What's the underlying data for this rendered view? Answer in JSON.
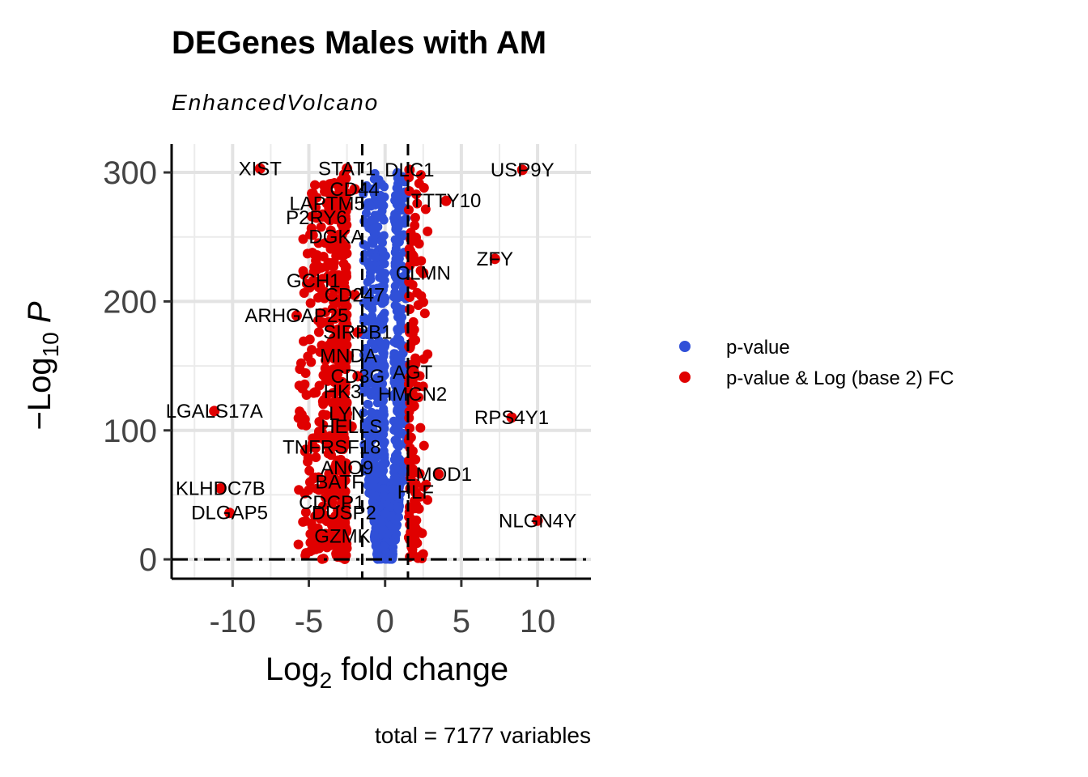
{
  "chart_data": {
    "type": "scatter",
    "title": "DEGenes Males with AM",
    "subtitle": "EnhancedVolcano",
    "xlabel": {
      "base": "Log",
      "sub": "2",
      "rest": " fold change"
    },
    "ylabel": {
      "base": "Log",
      "sub": "10",
      "rest": " P"
    },
    "xlim": [
      -14,
      13.5
    ],
    "ylim": [
      -15,
      322
    ],
    "x_ticks": [
      -10,
      -5,
      0,
      5,
      10
    ],
    "y_ticks": [
      0,
      100,
      200,
      300
    ],
    "grid": true,
    "fc_cutoff": 1.5,
    "p_cutoff_log": 0,
    "caption": "total = 7177 variables",
    "legend_position": "right",
    "series": [
      {
        "name": "p-value",
        "color": "#3050d8"
      },
      {
        "name": "p-value & Log (base 2) FC",
        "color": "#e00000"
      }
    ],
    "labeled_points": [
      {
        "label": "XIST",
        "x": -8.2,
        "y": 303
      },
      {
        "label": "STAT1",
        "x": -2.5,
        "y": 303
      },
      {
        "label": "DLC1",
        "x": 1.6,
        "y": 302
      },
      {
        "label": "USP9Y",
        "x": 9.0,
        "y": 302
      },
      {
        "label": "CD44",
        "x": -2.0,
        "y": 287
      },
      {
        "label": "TTTY10",
        "x": 4.0,
        "y": 278
      },
      {
        "label": "LAPTM5",
        "x": -3.8,
        "y": 276
      },
      {
        "label": "P2RY6",
        "x": -4.5,
        "y": 265
      },
      {
        "label": "DGKA",
        "x": -3.2,
        "y": 250
      },
      {
        "label": "ZFY",
        "x": 7.2,
        "y": 233
      },
      {
        "label": "CLMN",
        "x": 2.5,
        "y": 222
      },
      {
        "label": "GCH1",
        "x": -4.7,
        "y": 216
      },
      {
        "label": "CD247",
        "x": -2.0,
        "y": 205
      },
      {
        "label": "ARHGAP25",
        "x": -5.8,
        "y": 189
      },
      {
        "label": "SIRPB1",
        "x": -1.8,
        "y": 176
      },
      {
        "label": "MNDA",
        "x": -2.4,
        "y": 158
      },
      {
        "label": "CD3G",
        "x": -1.8,
        "y": 142
      },
      {
        "label": "AGT",
        "x": 1.8,
        "y": 145
      },
      {
        "label": "HK3",
        "x": -2.8,
        "y": 130
      },
      {
        "label": "HMCN2",
        "x": 1.8,
        "y": 128
      },
      {
        "label": "LGALS17A",
        "x": -11.2,
        "y": 115
      },
      {
        "label": "LYN",
        "x": -2.5,
        "y": 113
      },
      {
        "label": "RPS4Y1",
        "x": 8.3,
        "y": 110
      },
      {
        "label": "HELLS",
        "x": -2.2,
        "y": 103
      },
      {
        "label": "TNFRSF18",
        "x": -3.5,
        "y": 87
      },
      {
        "label": "ANO9",
        "x": -2.5,
        "y": 71
      },
      {
        "label": "LMOD1",
        "x": 3.5,
        "y": 66
      },
      {
        "label": "BATF",
        "x": -3.0,
        "y": 60
      },
      {
        "label": "KLHDC7B",
        "x": -10.8,
        "y": 55
      },
      {
        "label": "HLF",
        "x": 2.0,
        "y": 52
      },
      {
        "label": "CDCP1",
        "x": -3.5,
        "y": 44
      },
      {
        "label": "DLGAP5",
        "x": -10.2,
        "y": 36
      },
      {
        "label": "DUSP2",
        "x": -2.7,
        "y": 36
      },
      {
        "label": "NLGN4Y",
        "x": 10.0,
        "y": 30
      },
      {
        "label": "GZMK",
        "x": -2.8,
        "y": 18
      }
    ]
  },
  "labels": {
    "title": "DEGenes Males with AM",
    "subtitle": "EnhancedVolcano",
    "caption": "total = 7177 variables",
    "legend_pvalue": "p-value",
    "legend_both": "p-value & Log (base 2) FC"
  }
}
